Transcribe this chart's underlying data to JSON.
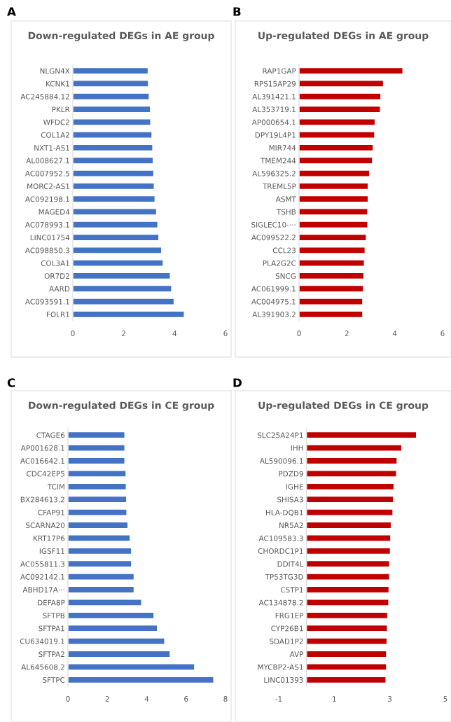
{
  "chart_data": [
    {
      "type": "bar",
      "orientation": "horizontal",
      "title": "Down-regulated DEGs in AE group",
      "annotations": [
        "A"
      ],
      "categories": [
        "NLGN4X",
        "KCNK1",
        "AC245884.12",
        "PKLR",
        "WFDC2",
        "COL1A2",
        "NXT1-AS1",
        "AL008627.1",
        "AC007952.5",
        "MORC2-AS1",
        "AC092198.1",
        "MAGED4",
        "AC078993.1",
        "LINC01754",
        "AC098850.3",
        "COL3A1",
        "OR7D2",
        "AARD",
        "AC093591.1",
        "FOLR1"
      ],
      "values": [
        2.96,
        2.97,
        3.0,
        3.05,
        3.06,
        3.11,
        3.14,
        3.16,
        3.18,
        3.2,
        3.23,
        3.29,
        3.34,
        3.38,
        3.49,
        3.55,
        3.83,
        3.88,
        3.98,
        4.38
      ],
      "color": "#4472c4",
      "xlim": [
        0,
        6
      ],
      "xticks": [
        0,
        2,
        4,
        6
      ],
      "grid": false,
      "legend": false
    },
    {
      "type": "bar",
      "orientation": "horizontal",
      "title": "Up-regulated DEGs in AE group",
      "annotations": [
        "B"
      ],
      "categories": [
        "RAP1GAP",
        "RPS15AP29",
        "AL391421.1",
        "AL353719.1",
        "AP000654.1",
        "DPY19L4P1",
        "MIR744",
        "TMEM244",
        "AL596325.2",
        "TREML5P",
        "ASMT",
        "TSHB",
        "SIGLEC10-···",
        "AC099522.2",
        "CCL23",
        "PLA2G2C",
        "SNCG",
        "AC061999.1",
        "AC004975.1",
        "AL391903.2"
      ],
      "values": [
        4.34,
        3.53,
        3.42,
        3.4,
        3.18,
        3.16,
        3.1,
        3.07,
        2.95,
        2.89,
        2.89,
        2.87,
        2.87,
        2.81,
        2.76,
        2.73,
        2.71,
        2.69,
        2.66,
        2.66
      ],
      "color": "#c00000",
      "xlim": [
        0,
        6
      ],
      "xticks": [
        0,
        2,
        4,
        6
      ],
      "grid": false,
      "legend": false
    },
    {
      "type": "bar",
      "orientation": "horizontal",
      "title": "Down-regulated DEGs in CE group",
      "annotations": [
        "C"
      ],
      "categories": [
        "CTAGE6",
        "AP001628.1",
        "AC016642.1",
        "CDC42EP5",
        "TCIM",
        "BX284613.2",
        "CFAP91",
        "SCARNA20",
        "KRT17P6",
        "IGSF11",
        "AC055811.3",
        "AC092142.1",
        "ABHD17A···",
        "DEFA8P",
        "SFTPB",
        "SFTPA1",
        "CU634019.1",
        "SFTPA2",
        "AL645608.2",
        "SFTPC"
      ],
      "values": [
        2.89,
        2.89,
        2.89,
        2.95,
        2.96,
        2.98,
        2.99,
        3.05,
        3.16,
        3.23,
        3.23,
        3.36,
        3.36,
        3.74,
        4.37,
        4.54,
        4.91,
        5.19,
        6.43,
        7.4
      ],
      "color": "#4472c4",
      "xlim": [
        0,
        8
      ],
      "xticks": [
        0,
        2,
        4,
        6,
        8
      ],
      "grid": false,
      "legend": false
    },
    {
      "type": "bar",
      "orientation": "horizontal",
      "title": "Up-regulated DEGs in CE group",
      "annotations": [
        "D"
      ],
      "categories": [
        "SLC25A24P1",
        "IHH",
        "AL590096.1",
        "PDZD9",
        "IGHE",
        "SHISA3",
        "HLA-DQB1",
        "NR5A2",
        "AC109583.3",
        "CHORDC1P1",
        "DDIT4L",
        "TP53TG3D",
        "CSTP1",
        "AC134878.2",
        "FRG1EP",
        "CYP26B1",
        "SDAD1P2",
        "AVP",
        "MYCBP2-AS1",
        "LINC01393"
      ],
      "values": [
        3.96,
        3.43,
        3.26,
        3.24,
        3.15,
        3.13,
        3.11,
        3.05,
        3.03,
        3.02,
        2.99,
        2.99,
        2.97,
        2.96,
        2.92,
        2.91,
        2.9,
        2.88,
        2.88,
        2.86
      ],
      "color": "#c00000",
      "xlim": [
        -1,
        5
      ],
      "xticks": [
        -1,
        1,
        3,
        5
      ],
      "grid": false,
      "legend": false
    }
  ]
}
